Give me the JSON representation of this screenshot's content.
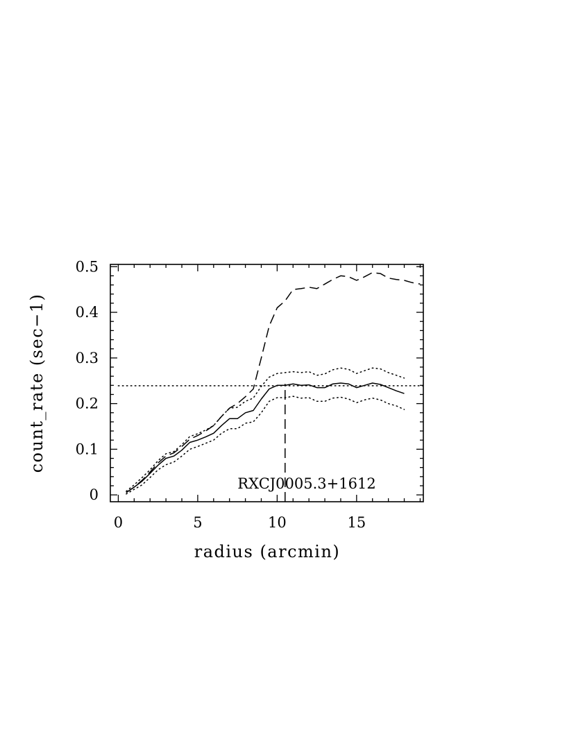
{
  "chart_data": {
    "type": "line",
    "xlabel": "radius (arcmin)",
    "ylabel": "count_rate (sec−1)",
    "xlim": [
      -0.5,
      19.2
    ],
    "ylim": [
      -0.015,
      0.505
    ],
    "x_ticks": [
      0,
      5,
      10,
      15
    ],
    "x_tick_labels": [
      "0",
      "5",
      "10",
      "15"
    ],
    "y_ticks": [
      0,
      0.1,
      0.2,
      0.3,
      0.4,
      0.5
    ],
    "y_tick_labels": [
      "0",
      "0.1",
      "0.2",
      "0.3",
      "0.4",
      "0.5"
    ],
    "annotation": "RXCJ0005.3+1612",
    "grid": false,
    "series": [
      {
        "style": "solid",
        "x": [
          0.5,
          1,
          1.5,
          2,
          2.5,
          3,
          3.5,
          4,
          4.5,
          5,
          5.5,
          6,
          6.5,
          7,
          7.5,
          8,
          8.5,
          9,
          9.5,
          10,
          10.5,
          11,
          11.5,
          12,
          12.5,
          13,
          13.5,
          14,
          14.5,
          15,
          15.5,
          16,
          16.5,
          17,
          17.5,
          18
        ],
        "y": [
          0.005,
          0.017,
          0.03,
          0.047,
          0.065,
          0.08,
          0.085,
          0.098,
          0.115,
          0.12,
          0.127,
          0.135,
          0.152,
          0.167,
          0.167,
          0.18,
          0.185,
          0.21,
          0.232,
          0.24,
          0.24,
          0.243,
          0.24,
          0.241,
          0.235,
          0.235,
          0.243,
          0.245,
          0.243,
          0.235,
          0.24,
          0.245,
          0.242,
          0.235,
          0.228,
          0.222
        ]
      },
      {
        "style": "dotted",
        "x": [
          0.5,
          1,
          1.5,
          2,
          2.5,
          3,
          3.5,
          4,
          4.5,
          5,
          5.5,
          6,
          6.5,
          7,
          7.5,
          8,
          8.5,
          9,
          9.5,
          10,
          10.5,
          11,
          11.5,
          12,
          12.5,
          13,
          13.5,
          14,
          14.5,
          15,
          15.5,
          16,
          16.5,
          17,
          17.5,
          18
        ],
        "y": [
          0.008,
          0.022,
          0.038,
          0.055,
          0.075,
          0.09,
          0.095,
          0.11,
          0.128,
          0.134,
          0.142,
          0.152,
          0.172,
          0.19,
          0.192,
          0.205,
          0.212,
          0.238,
          0.258,
          0.266,
          0.268,
          0.27,
          0.268,
          0.27,
          0.262,
          0.265,
          0.274,
          0.278,
          0.275,
          0.266,
          0.272,
          0.278,
          0.276,
          0.268,
          0.262,
          0.256
        ]
      },
      {
        "style": "dotted",
        "x": [
          0.5,
          1,
          1.5,
          2,
          2.5,
          3,
          3.5,
          4,
          4.5,
          5,
          5.5,
          6,
          6.5,
          7,
          7.5,
          8,
          8.5,
          9,
          9.5,
          10,
          10.5,
          11,
          11.5,
          12,
          12.5,
          13,
          13.5,
          14,
          14.5,
          15,
          15.5,
          16,
          16.5,
          17,
          17.5,
          18
        ],
        "y": [
          0.002,
          0.012,
          0.022,
          0.038,
          0.055,
          0.066,
          0.072,
          0.085,
          0.1,
          0.106,
          0.113,
          0.12,
          0.135,
          0.145,
          0.145,
          0.157,
          0.16,
          0.18,
          0.205,
          0.213,
          0.213,
          0.216,
          0.212,
          0.213,
          0.205,
          0.205,
          0.212,
          0.214,
          0.21,
          0.202,
          0.208,
          0.212,
          0.208,
          0.2,
          0.195,
          0.187
        ]
      },
      {
        "style": "dashed",
        "x": [
          0.5,
          1,
          1.5,
          2,
          2.5,
          3,
          3.5,
          4,
          4.5,
          5,
          5.5,
          6,
          6.5,
          7,
          7.5,
          8,
          8.5,
          9,
          9.5,
          10,
          10.5,
          11,
          11.5,
          12,
          12.5,
          13,
          13.5,
          14,
          14.5,
          15,
          15.5,
          16,
          16.5,
          17,
          17.5,
          18,
          18.5,
          19
        ],
        "y": [
          0.005,
          0.017,
          0.032,
          0.05,
          0.07,
          0.085,
          0.092,
          0.106,
          0.122,
          0.13,
          0.14,
          0.152,
          0.172,
          0.19,
          0.2,
          0.215,
          0.232,
          0.3,
          0.37,
          0.41,
          0.425,
          0.45,
          0.452,
          0.455,
          0.452,
          0.462,
          0.472,
          0.48,
          0.478,
          0.47,
          0.478,
          0.487,
          0.485,
          0.475,
          0.472,
          0.47,
          0.465,
          0.462
        ]
      },
      {
        "style": "dotted",
        "x": [
          0,
          19.2
        ],
        "y": [
          0.239,
          0.239
        ]
      },
      {
        "style": "dashed",
        "x": [
          10.5,
          10.5
        ],
        "y": [
          -0.015,
          0.243
        ]
      }
    ]
  }
}
